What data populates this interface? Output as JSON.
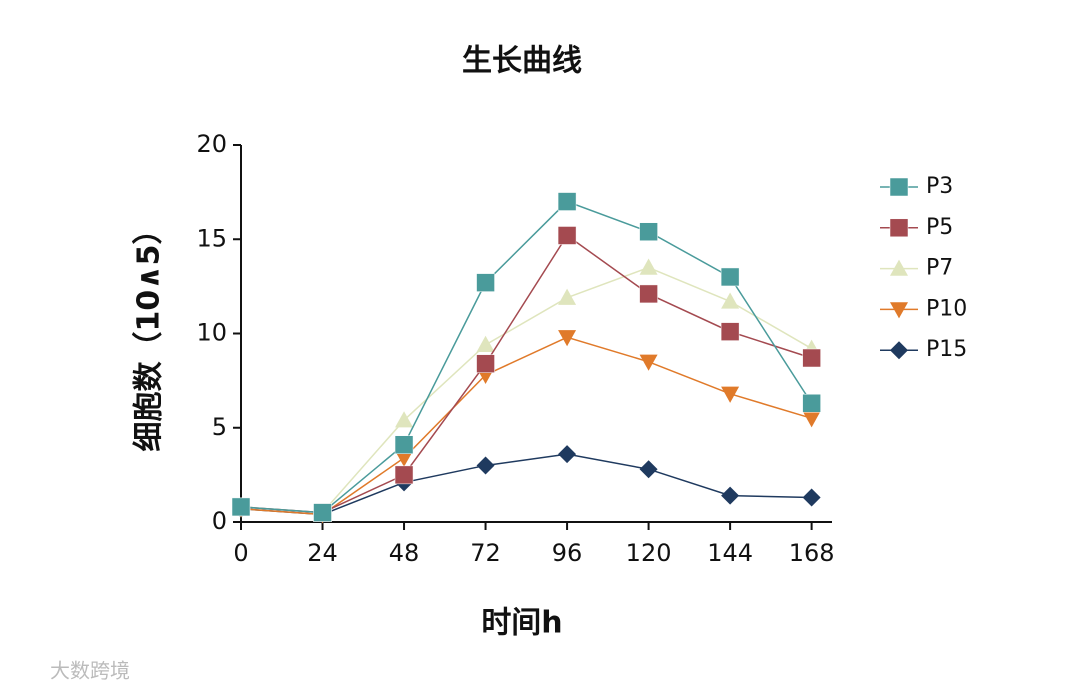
{
  "chart_data": {
    "type": "line",
    "title": "生长曲线",
    "x_label": "时间h",
    "y_label": "细胞数（10∧5）",
    "x": [
      0,
      24,
      48,
      72,
      96,
      120,
      144,
      168
    ],
    "xlim": [
      0,
      174
    ],
    "xticks": [
      0,
      24,
      48,
      72,
      96,
      120,
      144,
      168
    ],
    "ylim": [
      0,
      20
    ],
    "yticks": [
      0,
      5,
      10,
      15,
      20
    ],
    "series": [
      {
        "name": "P3",
        "color": "#4a9b9b",
        "marker": "square",
        "values": [
          0.8,
          0.5,
          4.1,
          12.7,
          17.0,
          15.4,
          13.0,
          6.3
        ]
      },
      {
        "name": "P5",
        "color": "#a44a50",
        "marker": "square",
        "values": [
          0.8,
          0.5,
          2.5,
          8.4,
          15.2,
          12.1,
          10.1,
          8.7
        ]
      },
      {
        "name": "P7",
        "color": "#dfe5bd",
        "marker": "triangle-up",
        "values": [
          0.8,
          0.5,
          5.4,
          9.4,
          11.9,
          13.5,
          11.7,
          9.2
        ]
      },
      {
        "name": "P10",
        "color": "#e07a2a",
        "marker": "triangle-down",
        "values": [
          0.7,
          0.4,
          3.4,
          7.8,
          9.8,
          8.5,
          6.8,
          5.5
        ]
      },
      {
        "name": "P15",
        "color": "#1f3a5f",
        "marker": "diamond",
        "values": [
          0.7,
          0.4,
          2.1,
          3.0,
          3.6,
          2.8,
          1.4,
          1.3
        ]
      }
    ],
    "legend": "right",
    "watermark": "大数跨境"
  }
}
